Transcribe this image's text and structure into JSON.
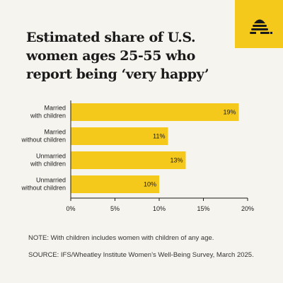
{
  "chart_data": {
    "type": "bar",
    "orientation": "horizontal",
    "title": "Estimated share of U.S. women ages 25-55 who report being ‘very happy’",
    "categories": [
      [
        "Married",
        "with children"
      ],
      [
        "Married",
        "without children"
      ],
      [
        "Unmarried",
        "with children"
      ],
      [
        "Unmarried",
        "without children"
      ]
    ],
    "values": [
      19,
      11,
      13,
      10
    ],
    "value_labels": [
      "19%",
      "11%",
      "13%",
      "10%"
    ],
    "xlim": [
      0,
      20
    ],
    "xticks": [
      0,
      5,
      10,
      15,
      20
    ],
    "xtick_labels": [
      "0%",
      "5%",
      "10%",
      "15%",
      "20%"
    ],
    "grid": false,
    "bar_color": "#f5c81c"
  },
  "notes": {
    "note": "NOTE: With children includes women with children of any age.",
    "source": "SOURCE: IFS/Wheatley Institute Women’s Well-Being Survey, March 2025."
  },
  "logo": {
    "icon": "beehive-icon"
  }
}
